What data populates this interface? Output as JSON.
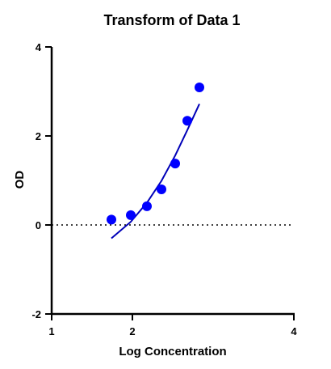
{
  "chart_data": {
    "type": "scatter",
    "title": "Transform of Data 1",
    "xlabel": "Log Concentration",
    "ylabel": "OD",
    "xlim": [
      1,
      4
    ],
    "ylim": [
      -2,
      4
    ],
    "x_ticks": [
      1,
      2,
      4
    ],
    "x_tick_labels": [
      "1",
      "2",
      "4"
    ],
    "y_ticks": [
      -2,
      0,
      2,
      4
    ],
    "y_tick_labels": [
      "-2",
      "0",
      "2",
      "4"
    ],
    "reference_line": {
      "y": 0,
      "style": "dotted"
    },
    "series": [
      {
        "type": "scatter",
        "x": [
          1.74,
          1.98,
          2.18,
          2.36,
          2.53,
          2.68,
          2.83
        ],
        "y": [
          0.12,
          0.22,
          0.42,
          0.8,
          1.38,
          2.34,
          3.09
        ],
        "color": "#0000ff"
      },
      {
        "type": "line",
        "x": [
          1.74,
          1.98,
          2.18,
          2.36,
          2.53,
          2.68,
          2.83
        ],
        "y": [
          -0.3,
          0.07,
          0.5,
          0.99,
          1.56,
          2.13,
          2.72
        ],
        "color": "#0000b8"
      }
    ]
  }
}
